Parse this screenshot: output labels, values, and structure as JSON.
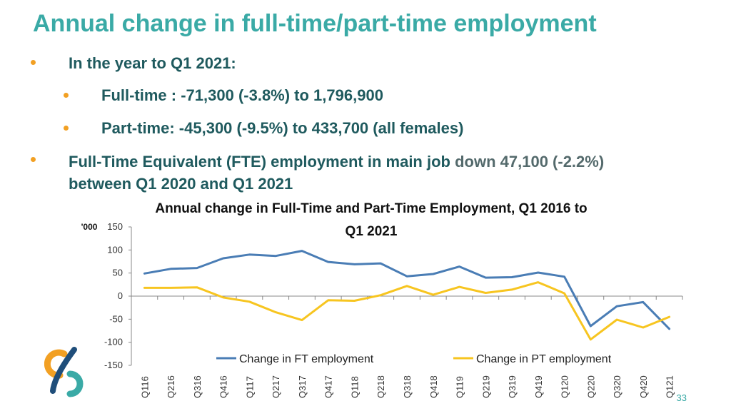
{
  "slide": {
    "title": "Annual change in full-time/part-time employment",
    "bullets": [
      {
        "text": "In the year to Q1 2021:"
      },
      {
        "text": "Full-time : -71,300 (-3.8%) to 1,796,900"
      },
      {
        "text": "Part-time: -45,300 (-9.5%) to 433,700 (all females)"
      },
      {
        "line1_a": "Full-Time Equivalent (FTE) employment in main job ",
        "line1_b": "down 47,100 (-2.2%)",
        "line2": "between Q1 2020 and Q1 2021"
      }
    ],
    "page_number": "33"
  },
  "colors": {
    "title": "#3aaaa6",
    "text": "#1f5a5e",
    "bullet": "#f2a023",
    "ft_series": "#4a7db5",
    "pt_series": "#f7c520"
  },
  "chart_data": {
    "type": "line",
    "title_line1": "Annual change in Full-Time and Part-Time Employment, Q1 2016 to",
    "title_line2": "Q1 2021",
    "ylabel": "'000",
    "ylim": [
      -150,
      150
    ],
    "yticks": [
      150,
      100,
      50,
      0,
      -50,
      -100,
      -150
    ],
    "categories": [
      "Q116",
      "Q216",
      "Q316",
      "Q416",
      "Q117",
      "Q217",
      "Q317",
      "Q417",
      "Q118",
      "Q218",
      "Q318",
      "Q418",
      "Q119",
      "Q219",
      "Q319",
      "Q419",
      "Q120",
      "Q220",
      "Q320",
      "Q420",
      "Q121"
    ],
    "series": [
      {
        "name": "Change in FT employment",
        "color": "#4a7db5",
        "values": [
          49,
          59,
          61,
          82,
          90,
          87,
          98,
          74,
          69,
          71,
          43,
          48,
          64,
          40,
          41,
          51,
          42,
          -65,
          -22,
          -13,
          -71
        ]
      },
      {
        "name": "Change in PT employment",
        "color": "#f7c520",
        "values": [
          18,
          18,
          19,
          -3,
          -12,
          -35,
          -52,
          -9,
          -10,
          2,
          22,
          3,
          20,
          7,
          14,
          30,
          6,
          -94,
          -51,
          -68,
          -45
        ]
      }
    ],
    "legend_position": "bottom-inside",
    "grid": false
  }
}
